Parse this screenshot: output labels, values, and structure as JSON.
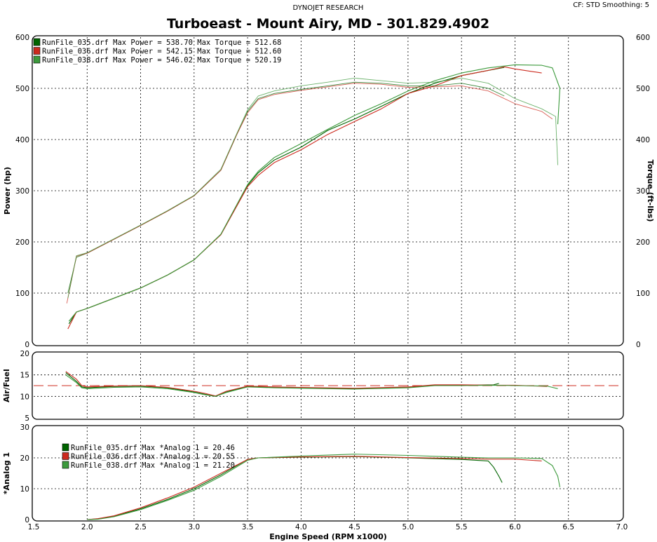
{
  "header": {
    "company": "DYNOJET RESEARCH",
    "settings": "CF: STD  Smoothing: 5",
    "title": "Turboeast - Mount Airy, MD - 301.829.4902"
  },
  "colors": {
    "run035": "#006400",
    "run036": "#cc2a1e",
    "run038": "#3c9a3c",
    "reference_line": "#cc2a1e",
    "grid": "#000000"
  },
  "chart_data": [
    {
      "type": "line",
      "panel": "power-torque",
      "xlabel": "Engine Speed (RPM x1000)",
      "ylabel": "Power (hp)",
      "ylabel_right": "Torque (ft-lbs)",
      "xlim": [
        1.5,
        7.0
      ],
      "ylim": [
        0,
        600
      ],
      "xticks": [
        "1.5",
        "2.0",
        "2.5",
        "3.0",
        "3.5",
        "4.0",
        "4.5",
        "5.0",
        "5.5",
        "6.0",
        "6.5",
        "7.0"
      ],
      "yticks": [
        "0",
        "100",
        "200",
        "300",
        "400",
        "500",
        "600"
      ],
      "grid": true,
      "legend_position": "top-left",
      "legend": [
        {
          "name": "RunFile_035.drf",
          "text": "RunFile_035.drf Max Power = 538.70    Max Torque = 512.68"
        },
        {
          "name": "RunFile_036.drf",
          "text": "RunFile_036.drf Max Power = 542.15    Max Torque = 512.60"
        },
        {
          "name": "RunFile_038.drf",
          "text": "RunFile_038.drf Max Power = 546.02    Max Torque = 520.19"
        }
      ],
      "series": [
        {
          "name": "RunFile_035.drf",
          "measure": "Power",
          "color": "#006400",
          "x": [
            1.83,
            1.9,
            2.0,
            2.25,
            2.5,
            2.75,
            3.0,
            3.25,
            3.5,
            3.6,
            3.75,
            4.0,
            4.25,
            4.5,
            4.75,
            5.0,
            5.25,
            5.5,
            5.75,
            5.9
          ],
          "y": [
            40,
            63,
            70,
            90,
            110,
            135,
            165,
            215,
            310,
            335,
            360,
            385,
            418,
            440,
            465,
            490,
            510,
            525,
            535,
            541
          ]
        },
        {
          "name": "RunFile_036.drf",
          "measure": "Power",
          "color": "#cc2a1e",
          "x": [
            1.82,
            1.9,
            2.0,
            2.25,
            2.5,
            2.75,
            3.0,
            3.25,
            3.5,
            3.6,
            3.75,
            4.0,
            4.25,
            4.5,
            4.75,
            5.0,
            5.25,
            5.5,
            5.75,
            5.9,
            6.0,
            6.25
          ],
          "y": [
            30,
            63,
            70,
            90,
            110,
            135,
            165,
            214,
            308,
            330,
            355,
            380,
            410,
            435,
            460,
            490,
            505,
            525,
            535,
            542,
            538,
            530
          ]
        },
        {
          "name": "RunFile_038.drf",
          "measure": "Power",
          "color": "#3c9a3c",
          "x": [
            1.83,
            1.9,
            2.0,
            2.25,
            2.5,
            2.75,
            3.0,
            3.25,
            3.5,
            3.6,
            3.75,
            4.0,
            4.25,
            4.5,
            4.75,
            5.0,
            5.25,
            5.5,
            5.75,
            6.0,
            6.25,
            6.35,
            6.42,
            6.4
          ],
          "y": [
            45,
            63,
            70,
            90,
            110,
            135,
            165,
            215,
            312,
            338,
            365,
            392,
            420,
            447,
            470,
            495,
            515,
            530,
            540,
            546,
            545,
            540,
            500,
            430
          ]
        },
        {
          "name": "RunFile_035.drf",
          "measure": "Torque",
          "color": "#006400",
          "x": [
            1.82,
            1.9,
            2.0,
            2.25,
            2.5,
            2.75,
            3.0,
            3.25,
            3.4,
            3.5,
            3.6,
            3.75,
            4.0,
            4.25,
            4.5,
            4.75,
            5.0,
            5.25,
            5.5,
            5.75,
            5.9
          ],
          "y": [
            100,
            170,
            178,
            205,
            232,
            260,
            290,
            340,
            410,
            455,
            480,
            490,
            498,
            505,
            512,
            510,
            505,
            505,
            510,
            500,
            485
          ]
        },
        {
          "name": "RunFile_036.drf",
          "measure": "Torque",
          "color": "#cc2a1e",
          "x": [
            1.81,
            1.9,
            2.0,
            2.25,
            2.5,
            2.75,
            3.0,
            3.25,
            3.4,
            3.5,
            3.6,
            3.75,
            4.0,
            4.25,
            4.5,
            4.75,
            5.0,
            5.25,
            5.5,
            5.75,
            6.0,
            6.25,
            6.35
          ],
          "y": [
            80,
            172,
            178,
            205,
            232,
            260,
            290,
            340,
            410,
            452,
            478,
            488,
            496,
            503,
            510,
            508,
            502,
            503,
            505,
            495,
            470,
            455,
            440
          ]
        },
        {
          "name": "RunFile_038.drf",
          "measure": "Torque",
          "color": "#3c9a3c",
          "x": [
            1.82,
            1.9,
            2.0,
            2.25,
            2.5,
            2.75,
            3.0,
            3.25,
            3.4,
            3.5,
            3.6,
            3.75,
            4.0,
            4.25,
            4.5,
            4.75,
            5.0,
            5.25,
            5.5,
            5.75,
            6.0,
            6.25,
            6.38,
            6.4
          ],
          "y": [
            90,
            173,
            179,
            206,
            233,
            261,
            291,
            342,
            412,
            458,
            485,
            495,
            505,
            512,
            520,
            515,
            510,
            512,
            520,
            510,
            480,
            460,
            445,
            350
          ]
        }
      ]
    },
    {
      "type": "line",
      "panel": "air-fuel",
      "ylabel": "Air/Fuel",
      "xlim": [
        1.5,
        7.0
      ],
      "ylim": [
        5,
        20
      ],
      "yticks": [
        "5",
        "10",
        "15",
        "20"
      ],
      "grid": true,
      "reference_value": 12.5,
      "series": [
        {
          "name": "RunFile_035.drf",
          "color": "#006400",
          "x": [
            1.8,
            1.9,
            1.95,
            2.0,
            2.25,
            2.5,
            2.75,
            3.0,
            3.1,
            3.2,
            3.3,
            3.5,
            3.75,
            4.0,
            4.5,
            5.0,
            5.25,
            5.5,
            5.8,
            5.85
          ],
          "y": [
            15.5,
            13.5,
            12.2,
            12.0,
            12.3,
            12.4,
            12.0,
            11.0,
            10.5,
            10.0,
            11.0,
            12.3,
            12.1,
            12.0,
            11.8,
            12.1,
            12.6,
            12.6,
            12.7,
            13.0
          ]
        },
        {
          "name": "RunFile_036.drf",
          "color": "#cc2a1e",
          "x": [
            1.8,
            1.9,
            1.95,
            2.0,
            2.25,
            2.5,
            2.75,
            3.0,
            3.1,
            3.2,
            3.3,
            3.5,
            3.75,
            4.0,
            4.5,
            5.0,
            5.25,
            5.5,
            5.8,
            6.0,
            6.3
          ],
          "y": [
            15.8,
            14.0,
            12.5,
            12.2,
            12.4,
            12.5,
            12.1,
            11.2,
            10.7,
            10.1,
            11.2,
            12.4,
            12.2,
            12.1,
            11.9,
            12.2,
            12.7,
            12.7,
            12.6,
            12.6,
            12.3
          ]
        },
        {
          "name": "RunFile_038.drf",
          "color": "#3c9a3c",
          "x": [
            1.8,
            1.9,
            1.95,
            2.0,
            2.25,
            2.5,
            2.75,
            3.0,
            3.1,
            3.2,
            3.3,
            3.5,
            3.75,
            4.0,
            4.5,
            5.0,
            5.25,
            5.5,
            5.8,
            6.0,
            6.3,
            6.4
          ],
          "y": [
            15.0,
            13.2,
            12.0,
            11.8,
            12.1,
            12.2,
            11.8,
            10.9,
            10.4,
            10.0,
            10.9,
            12.2,
            12.0,
            11.9,
            11.7,
            12.0,
            12.5,
            12.5,
            12.6,
            12.5,
            12.4,
            11.8
          ]
        }
      ]
    },
    {
      "type": "line",
      "panel": "analog",
      "ylabel": "*Analog 1",
      "xlabel": "Engine Speed (RPM x1000)",
      "xlim": [
        1.5,
        7.0
      ],
      "ylim": [
        0,
        30
      ],
      "yticks": [
        "0",
        "10",
        "20",
        "30"
      ],
      "xticks": [
        "1.5",
        "2.0",
        "2.5",
        "3.0",
        "3.5",
        "4.0",
        "4.5",
        "5.0",
        "5.5",
        "6.0",
        "6.5",
        "7.0"
      ],
      "grid": true,
      "legend_position": "upper-left",
      "legend": [
        {
          "name": "RunFile_035.drf",
          "text": "RunFile_035.drf Max *Analog 1 = 20.46"
        },
        {
          "name": "RunFile_036.drf",
          "text": "RunFile_036.drf Max *Analog 1 = 20.55"
        },
        {
          "name": "RunFile_038.drf",
          "text": "RunFile_038.drf Max *Analog 1 = 21.20"
        }
      ],
      "series": [
        {
          "name": "RunFile_035.drf",
          "color": "#006400",
          "x": [
            2.0,
            2.1,
            2.25,
            2.5,
            2.75,
            3.0,
            3.25,
            3.5,
            3.6,
            4.0,
            4.5,
            5.0,
            5.5,
            5.75,
            5.8,
            5.85,
            5.88
          ],
          "y": [
            0,
            0.2,
            1.0,
            3.5,
            6.5,
            10.0,
            14.5,
            19.5,
            20.0,
            20.2,
            20.4,
            20.0,
            19.5,
            19.0,
            17.0,
            14.0,
            12.0
          ]
        },
        {
          "name": "RunFile_036.drf",
          "color": "#cc2a1e",
          "x": [
            2.0,
            2.1,
            2.25,
            2.5,
            2.75,
            3.0,
            3.25,
            3.5,
            3.6,
            4.0,
            4.5,
            5.0,
            5.5,
            5.75,
            6.0,
            6.25
          ],
          "y": [
            0,
            0.3,
            1.2,
            3.8,
            7.0,
            10.5,
            15.0,
            19.5,
            20.0,
            20.3,
            20.5,
            20.1,
            19.8,
            19.6,
            19.6,
            19.0
          ]
        },
        {
          "name": "RunFile_038.drf",
          "color": "#3c9a3c",
          "x": [
            2.0,
            2.1,
            2.25,
            2.5,
            2.75,
            3.0,
            3.25,
            3.5,
            3.6,
            4.0,
            4.5,
            5.0,
            5.5,
            5.75,
            6.0,
            6.25,
            6.35,
            6.4,
            6.42
          ],
          "y": [
            0,
            0.1,
            0.9,
            3.2,
            6.2,
            9.5,
            14.0,
            19.2,
            20.0,
            20.6,
            21.2,
            20.8,
            20.2,
            20.0,
            20.0,
            19.8,
            17.5,
            14.0,
            10.5
          ]
        }
      ]
    }
  ]
}
